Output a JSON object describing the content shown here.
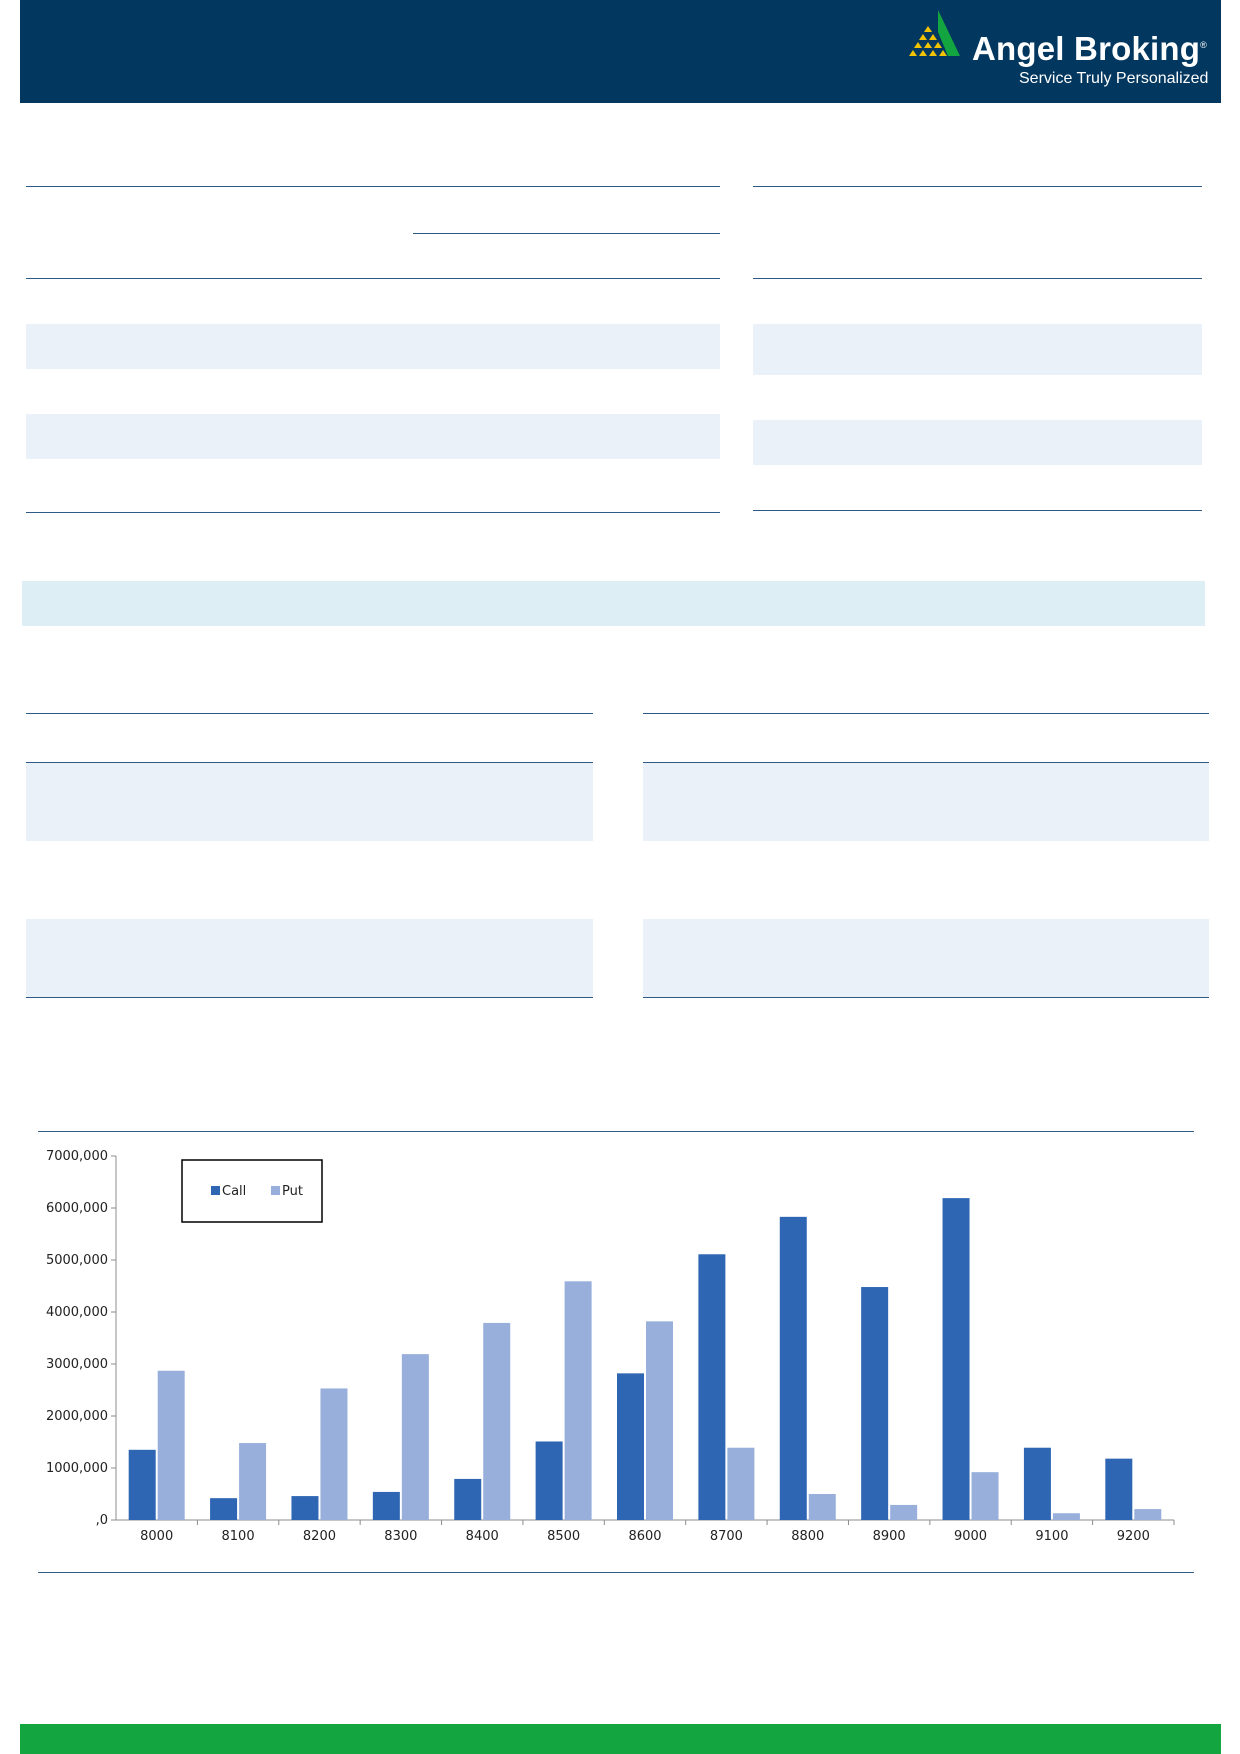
{
  "brand": {
    "name": "Angel Broking",
    "registered": "®",
    "tagline": "Service Truly Personalized"
  },
  "colors": {
    "header": "#02375f",
    "footer": "#12a540",
    "call": "#2f66b3",
    "put": "#98afdb",
    "band": "#eaf1f9"
  },
  "chart_data": {
    "type": "bar",
    "categories": [
      "8000",
      "8100",
      "8200",
      "8300",
      "8400",
      "8500",
      "8600",
      "8700",
      "8800",
      "8900",
      "9000",
      "9100",
      "9200"
    ],
    "series": [
      {
        "name": "Call",
        "values": [
          1350000,
          420000,
          460000,
          540000,
          790000,
          1510000,
          2820000,
          5110000,
          5830000,
          4480000,
          6190000,
          1390000,
          1180000
        ]
      },
      {
        "name": "Put",
        "values": [
          2870000,
          1480000,
          2530000,
          3190000,
          3790000,
          4590000,
          3820000,
          1390000,
          500000,
          290000,
          920000,
          130000,
          210000
        ]
      }
    ],
    "ylim": [
      0,
      7000000
    ],
    "yticks": [
      {
        "value": 0,
        "label": ",0"
      },
      {
        "value": 1000000,
        "label": "1000,000"
      },
      {
        "value": 2000000,
        "label": "2000,000"
      },
      {
        "value": 3000000,
        "label": "3000,000"
      },
      {
        "value": 4000000,
        "label": "4000,000"
      },
      {
        "value": 5000000,
        "label": "5000,000"
      },
      {
        "value": 6000000,
        "label": "6000,000"
      },
      {
        "value": 7000000,
        "label": "7000,000"
      }
    ],
    "legend_position": "top-left",
    "grid": false
  }
}
